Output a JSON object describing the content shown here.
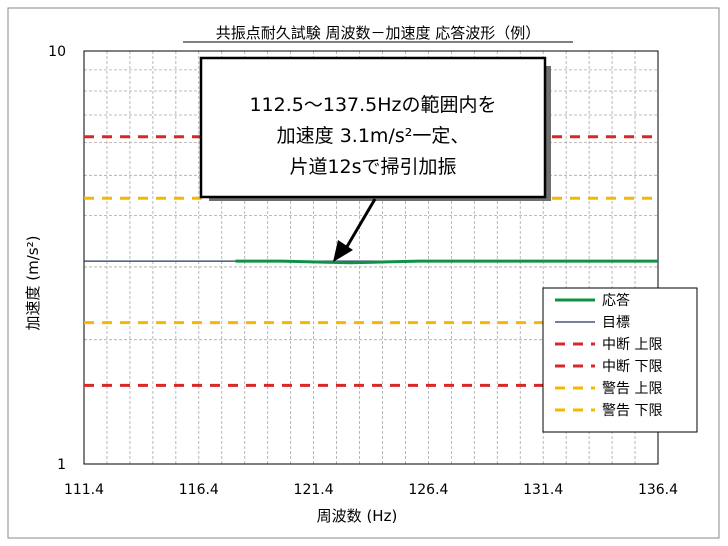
{
  "chart_data": {
    "type": "line",
    "title": "共振点耐久試験 周波数－加速度 応答波形（例）",
    "xlabel": "周波数 (Hz)",
    "ylabel": "加速度 (m/s²)",
    "x_scale": "linear",
    "y_scale": "log",
    "xlim": [
      111.4,
      136.4
    ],
    "ylim": [
      1,
      10
    ],
    "x_ticks": [
      "111.4",
      "116.4",
      "121.4",
      "126.4",
      "131.4",
      "136.4"
    ],
    "y_ticks": [
      "1",
      "10"
    ],
    "grid": true,
    "legend_position": "bottom-right",
    "series": [
      {
        "name": "応答",
        "color": "#119146",
        "style": "solid-thick",
        "x": [
          118.0,
          120.0,
          122.0,
          123.0,
          124.0,
          126.0,
          128.0,
          130.0,
          132.0,
          134.0,
          136.4
        ],
        "y": [
          3.1,
          3.1,
          3.08,
          3.07,
          3.08,
          3.1,
          3.1,
          3.1,
          3.1,
          3.1,
          3.1
        ]
      },
      {
        "name": "目標",
        "color": "#1f3864",
        "style": "solid-thin",
        "x": [
          111.4,
          136.4
        ],
        "y": [
          3.1,
          3.1
        ]
      },
      {
        "name": "中断 上限",
        "color": "#d62828",
        "style": "dashed",
        "x": [
          111.4,
          136.4
        ],
        "y": [
          6.2,
          6.2
        ]
      },
      {
        "name": "中断 下限",
        "color": "#d62828",
        "style": "dashed",
        "x": [
          111.4,
          136.4
        ],
        "y": [
          1.55,
          1.55
        ]
      },
      {
        "name": "警告 上限",
        "color": "#f5b800",
        "style": "dashed",
        "x": [
          111.4,
          136.4
        ],
        "y": [
          4.4,
          4.4
        ]
      },
      {
        "name": "警告 下限",
        "color": "#f5b800",
        "style": "dashed",
        "x": [
          111.4,
          136.4
        ],
        "y": [
          2.2,
          2.2
        ]
      }
    ],
    "annotation": {
      "lines": [
        "112.5～137.5Hzの範囲内を",
        "加速度 3.1m/s²一定、",
        "片道12sで掃引加振"
      ],
      "arrow_target": {
        "x": 122.2,
        "y": 3.1
      }
    }
  }
}
